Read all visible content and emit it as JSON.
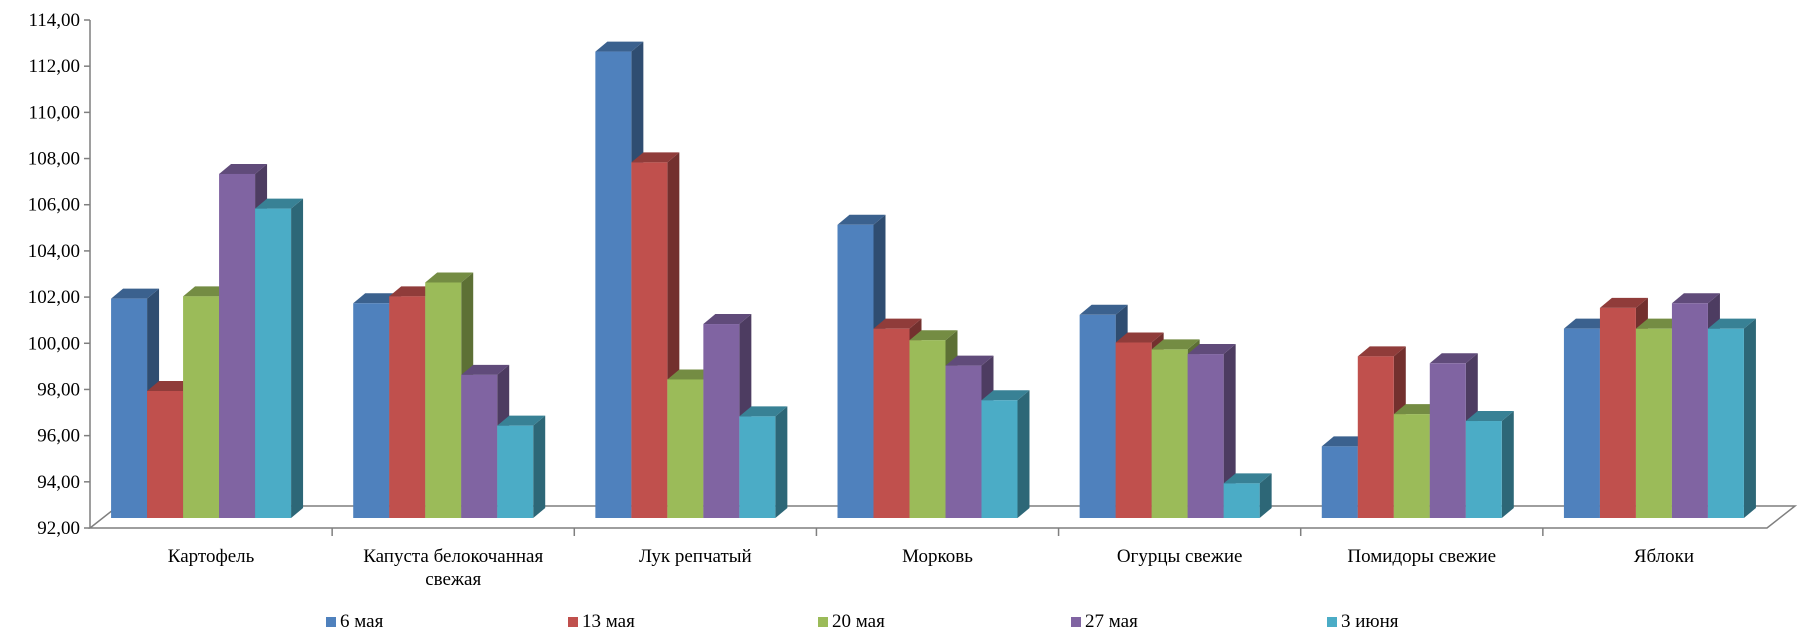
{
  "chart_data": {
    "type": "bar",
    "style": "3d-clustered-column",
    "categories": [
      "Картофель",
      "Капуста белокочанная свежая",
      "Лук репчатый",
      "Морковь",
      "Огурцы свежие",
      "Помидоры свежие",
      "Яблоки"
    ],
    "category_lines": [
      [
        "Картофель"
      ],
      [
        "Капуста белокочанная",
        "свежая"
      ],
      [
        "Лук репчатый"
      ],
      [
        "Морковь"
      ],
      [
        "Огурцы свежие"
      ],
      [
        "Помидоры свежие"
      ],
      [
        "Яблоки"
      ]
    ],
    "series": [
      {
        "name": "6 мая",
        "color": "#4F81BD",
        "values": [
          101.5,
          101.3,
          112.2,
          104.7,
          100.8,
          95.1,
          100.2
        ]
      },
      {
        "name": "13 мая",
        "color": "#C0504D",
        "values": [
          97.5,
          101.6,
          107.4,
          100.2,
          99.6,
          99.0,
          101.1
        ]
      },
      {
        "name": "20 мая",
        "color": "#9BBB59",
        "values": [
          101.6,
          102.2,
          98.0,
          99.7,
          99.3,
          96.5,
          100.2
        ]
      },
      {
        "name": "27 мая",
        "color": "#8064A2",
        "values": [
          106.9,
          98.2,
          100.4,
          98.6,
          99.1,
          98.7,
          101.3
        ]
      },
      {
        "name": "3 июня",
        "color": "#4BACC6",
        "values": [
          105.4,
          96.0,
          96.4,
          97.1,
          93.5,
          96.2,
          100.2
        ]
      }
    ],
    "ylim": [
      92,
      114
    ],
    "y_ticks": [
      "92,00",
      "94,00",
      "96,00",
      "98,00",
      "100,00",
      "102,00",
      "104,00",
      "106,00",
      "108,00",
      "110,00",
      "112,00",
      "114,00"
    ],
    "title": "",
    "xlabel": "",
    "ylabel": "",
    "grid": false,
    "legend_position": "bottom"
  }
}
